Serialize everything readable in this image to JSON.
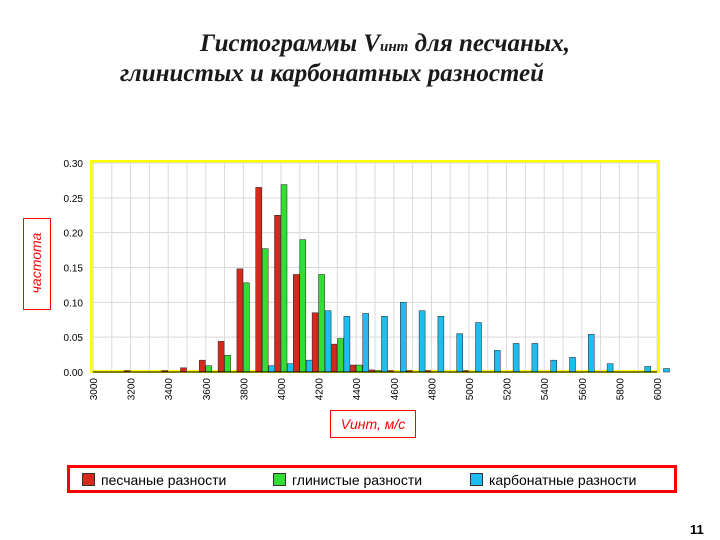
{
  "title_line1": "Гистограммы V",
  "title_sub": "инт",
  "title_line1_rest": " для песчаных,",
  "title_line2": "глинистых и карбонатных разностей",
  "page_number": "11",
  "colors": {
    "sand": "#d42a1e",
    "clay": "#33dd33",
    "carb": "#1ebdf0",
    "frame": "#ffff00",
    "accent": "#ff0000",
    "grid": "#d9d9d9"
  },
  "chart_data": {
    "type": "bar",
    "xlabel": "Vинт, м/с",
    "ylabel": "частота",
    "ylim": [
      0,
      0.3
    ],
    "yticks": [
      "0.00",
      "0.05",
      "0.10",
      "0.15",
      "0.20",
      "0.25",
      "0.30"
    ],
    "categories": [
      3000,
      3100,
      3200,
      3300,
      3400,
      3500,
      3600,
      3700,
      3800,
      3900,
      4000,
      4100,
      4200,
      4300,
      4400,
      4500,
      4600,
      4700,
      4800,
      4900,
      5000,
      5100,
      5200,
      5300,
      5400,
      5500,
      5600,
      5700,
      5800,
      5900,
      6000
    ],
    "xticks": [
      "3000",
      "3200",
      "3400",
      "3600",
      "3800",
      "4000",
      "4200",
      "4400",
      "4600",
      "4800",
      "5000",
      "5200",
      "5400",
      "5600",
      "5800",
      "6000"
    ],
    "grid": true,
    "legend_position": "bottom",
    "series": [
      {
        "name": "песчаные разности",
        "values": [
          0,
          0,
          0.002,
          0,
          0.002,
          0.006,
          0.017,
          0.044,
          0.148,
          0.265,
          0.225,
          0.14,
          0.085,
          0.04,
          0.01,
          0.003,
          0.002,
          0.002,
          0.002,
          0,
          0.002,
          0,
          0,
          0,
          0,
          0,
          0,
          0,
          0,
          0,
          0
        ]
      },
      {
        "name": "глинистые разности",
        "values": [
          0,
          0,
          0,
          0,
          0,
          0,
          0.009,
          0.024,
          0.128,
          0.177,
          0.269,
          0.19,
          0.14,
          0.048,
          0.01,
          0.002,
          0,
          0,
          0,
          0,
          0,
          0,
          0,
          0,
          0,
          0,
          0,
          0,
          0,
          0,
          0
        ]
      },
      {
        "name": "карбонатные разности",
        "values": [
          0,
          0,
          0,
          0,
          0,
          0,
          0,
          0,
          0,
          0.009,
          0.012,
          0.017,
          0.088,
          0.08,
          0.084,
          0.08,
          0.1,
          0.088,
          0.08,
          0.055,
          0.071,
          0.031,
          0.041,
          0.041,
          0.017,
          0.021,
          0.054,
          0.012,
          0,
          0.008,
          0.005
        ]
      }
    ]
  }
}
